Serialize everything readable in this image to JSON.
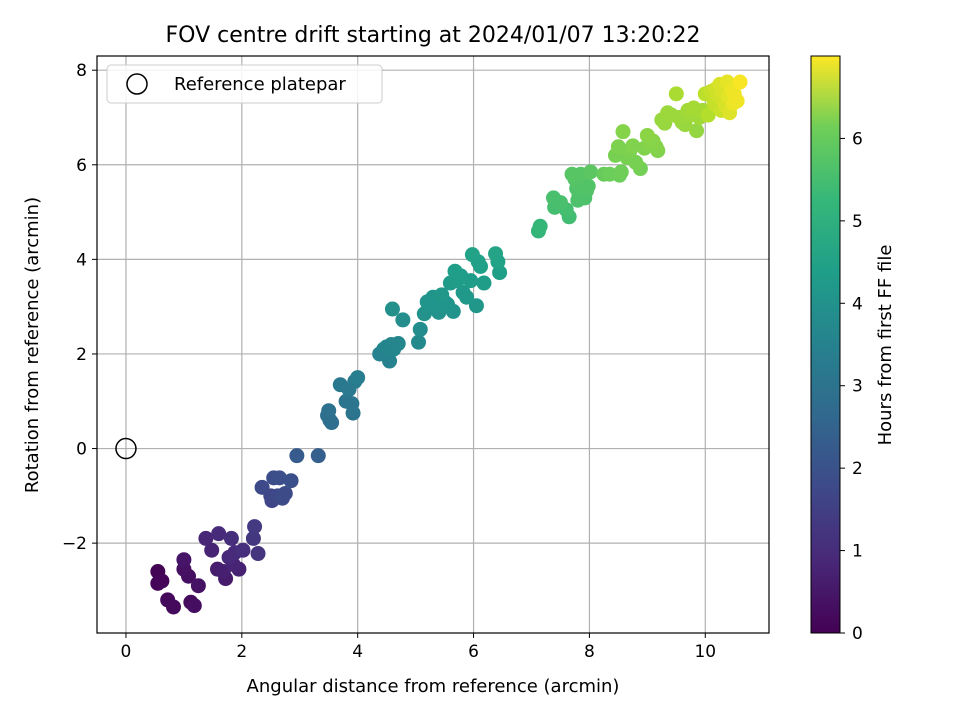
{
  "chart_data": {
    "type": "scatter",
    "title": "FOV centre drift starting at 2024/01/07 13:20:22",
    "xlabel": "Angular distance from reference (arcmin)",
    "ylabel": "Rotation from reference (arcmin)",
    "xlim": [
      -0.5,
      11.1
    ],
    "ylim": [
      -3.9,
      8.3
    ],
    "xticks": [
      0,
      2,
      4,
      6,
      8,
      10
    ],
    "xtick_labels": [
      "0",
      "2",
      "4",
      "6",
      "8",
      "10"
    ],
    "yticks": [
      -2,
      0,
      2,
      4,
      6,
      8
    ],
    "ytick_labels": [
      "−2",
      "0",
      "2",
      "4",
      "6",
      "8"
    ],
    "grid": true,
    "legend": {
      "placement": "top-left",
      "entries": [
        {
          "label": "Reference platepar",
          "marker": "open-circle"
        }
      ]
    },
    "reference_point": {
      "x": 0,
      "y": 0
    },
    "colorbar": {
      "label": "Hours from first FF file",
      "range": [
        0,
        7
      ],
      "ticks": [
        0,
        1,
        2,
        3,
        4,
        5,
        6
      ],
      "tick_labels": [
        "0",
        "1",
        "2",
        "3",
        "4",
        "5",
        "6"
      ],
      "colormap": "viridis"
    },
    "points": [
      {
        "x": 0.55,
        "y": -2.6,
        "h": 0.05
      },
      {
        "x": 0.55,
        "y": -2.85,
        "h": 0.08
      },
      {
        "x": 0.62,
        "y": -2.8,
        "h": 0.1
      },
      {
        "x": 0.72,
        "y": -3.2,
        "h": 0.15
      },
      {
        "x": 0.82,
        "y": -3.35,
        "h": 0.18
      },
      {
        "x": 1.0,
        "y": -2.35,
        "h": 0.4
      },
      {
        "x": 1.0,
        "y": -2.55,
        "h": 0.32
      },
      {
        "x": 1.08,
        "y": -2.7,
        "h": 0.28
      },
      {
        "x": 1.12,
        "y": -3.25,
        "h": 0.22
      },
      {
        "x": 1.18,
        "y": -3.32,
        "h": 0.25
      },
      {
        "x": 1.25,
        "y": -2.9,
        "h": 0.35
      },
      {
        "x": 1.38,
        "y": -1.9,
        "h": 0.75
      },
      {
        "x": 1.48,
        "y": -2.15,
        "h": 0.7
      },
      {
        "x": 1.58,
        "y": -2.55,
        "h": 0.55
      },
      {
        "x": 1.6,
        "y": -1.8,
        "h": 0.85
      },
      {
        "x": 1.68,
        "y": -2.6,
        "h": 0.6
      },
      {
        "x": 1.72,
        "y": -2.75,
        "h": 0.52
      },
      {
        "x": 1.78,
        "y": -2.3,
        "h": 0.78
      },
      {
        "x": 1.82,
        "y": -1.9,
        "h": 0.92
      },
      {
        "x": 1.85,
        "y": -2.45,
        "h": 0.7
      },
      {
        "x": 1.88,
        "y": -2.2,
        "h": 0.82
      },
      {
        "x": 1.95,
        "y": -2.55,
        "h": 0.65
      },
      {
        "x": 2.02,
        "y": -2.15,
        "h": 0.95
      },
      {
        "x": 2.2,
        "y": -1.9,
        "h": 1.15
      },
      {
        "x": 2.22,
        "y": -1.65,
        "h": 1.2
      },
      {
        "x": 2.28,
        "y": -2.22,
        "h": 1.05
      },
      {
        "x": 2.35,
        "y": -0.82,
        "h": 1.55
      },
      {
        "x": 2.5,
        "y": -1.0,
        "h": 1.5
      },
      {
        "x": 2.52,
        "y": -1.1,
        "h": 1.45
      },
      {
        "x": 2.55,
        "y": -0.62,
        "h": 1.65
      },
      {
        "x": 2.62,
        "y": -1.0,
        "h": 1.55
      },
      {
        "x": 2.65,
        "y": -0.62,
        "h": 1.7
      },
      {
        "x": 2.7,
        "y": -1.05,
        "h": 1.6
      },
      {
        "x": 2.75,
        "y": -0.95,
        "h": 1.62
      },
      {
        "x": 2.85,
        "y": -0.68,
        "h": 1.72
      },
      {
        "x": 2.95,
        "y": -0.15,
        "h": 2.0
      },
      {
        "x": 3.32,
        "y": -0.15,
        "h": 2.1
      },
      {
        "x": 3.48,
        "y": 0.7,
        "h": 2.55
      },
      {
        "x": 3.5,
        "y": 0.8,
        "h": 2.6
      },
      {
        "x": 3.52,
        "y": 0.6,
        "h": 2.5
      },
      {
        "x": 3.55,
        "y": 0.55,
        "h": 2.52
      },
      {
        "x": 3.7,
        "y": 1.35,
        "h": 2.8
      },
      {
        "x": 3.8,
        "y": 1.0,
        "h": 2.7
      },
      {
        "x": 3.85,
        "y": 1.25,
        "h": 2.85
      },
      {
        "x": 3.9,
        "y": 0.95,
        "h": 2.75
      },
      {
        "x": 3.92,
        "y": 0.75,
        "h": 2.68
      },
      {
        "x": 3.95,
        "y": 1.42,
        "h": 2.9
      },
      {
        "x": 4.0,
        "y": 1.5,
        "h": 2.95
      },
      {
        "x": 4.38,
        "y": 2.0,
        "h": 3.1
      },
      {
        "x": 4.45,
        "y": 2.1,
        "h": 3.15
      },
      {
        "x": 4.5,
        "y": 2.15,
        "h": 3.2
      },
      {
        "x": 4.52,
        "y": 1.95,
        "h": 3.12
      },
      {
        "x": 4.55,
        "y": 1.85,
        "h": 3.1
      },
      {
        "x": 4.58,
        "y": 2.2,
        "h": 3.22
      },
      {
        "x": 4.6,
        "y": 2.95,
        "h": 3.5
      },
      {
        "x": 4.62,
        "y": 2.1,
        "h": 3.2
      },
      {
        "x": 4.7,
        "y": 2.22,
        "h": 3.25
      },
      {
        "x": 4.78,
        "y": 2.72,
        "h": 3.45
      },
      {
        "x": 5.05,
        "y": 2.25,
        "h": 3.3
      },
      {
        "x": 5.08,
        "y": 2.52,
        "h": 3.4
      },
      {
        "x": 5.15,
        "y": 2.85,
        "h": 3.55
      },
      {
        "x": 5.2,
        "y": 3.1,
        "h": 3.62
      },
      {
        "x": 5.25,
        "y": 3.05,
        "h": 3.6
      },
      {
        "x": 5.3,
        "y": 3.2,
        "h": 3.65
      },
      {
        "x": 5.35,
        "y": 2.95,
        "h": 3.58
      },
      {
        "x": 5.38,
        "y": 3.05,
        "h": 3.62
      },
      {
        "x": 5.4,
        "y": 2.88,
        "h": 3.55
      },
      {
        "x": 5.45,
        "y": 3.25,
        "h": 3.7
      },
      {
        "x": 5.5,
        "y": 3.1,
        "h": 3.65
      },
      {
        "x": 5.55,
        "y": 3.05,
        "h": 3.63
      },
      {
        "x": 5.6,
        "y": 3.5,
        "h": 3.8
      },
      {
        "x": 5.65,
        "y": 2.9,
        "h": 3.6
      },
      {
        "x": 5.68,
        "y": 3.75,
        "h": 3.9
      },
      {
        "x": 5.72,
        "y": 3.55,
        "h": 3.82
      },
      {
        "x": 5.78,
        "y": 3.65,
        "h": 3.86
      },
      {
        "x": 5.82,
        "y": 3.3,
        "h": 3.75
      },
      {
        "x": 5.88,
        "y": 3.2,
        "h": 3.72
      },
      {
        "x": 5.95,
        "y": 3.55,
        "h": 3.85
      },
      {
        "x": 5.98,
        "y": 4.1,
        "h": 4.0
      },
      {
        "x": 6.05,
        "y": 3.02,
        "h": 3.7
      },
      {
        "x": 6.08,
        "y": 3.95,
        "h": 3.97
      },
      {
        "x": 6.12,
        "y": 3.85,
        "h": 3.95
      },
      {
        "x": 6.18,
        "y": 3.5,
        "h": 3.85
      },
      {
        "x": 6.38,
        "y": 4.12,
        "h": 4.05
      },
      {
        "x": 6.42,
        "y": 3.95,
        "h": 4.0
      },
      {
        "x": 6.45,
        "y": 3.72,
        "h": 3.92
      },
      {
        "x": 7.12,
        "y": 4.6,
        "h": 4.6
      },
      {
        "x": 7.15,
        "y": 4.7,
        "h": 4.65
      },
      {
        "x": 7.38,
        "y": 5.3,
        "h": 4.95
      },
      {
        "x": 7.4,
        "y": 5.1,
        "h": 4.9
      },
      {
        "x": 7.5,
        "y": 5.2,
        "h": 4.95
      },
      {
        "x": 7.6,
        "y": 5.05,
        "h": 4.9
      },
      {
        "x": 7.65,
        "y": 4.9,
        "h": 4.85
      },
      {
        "x": 7.7,
        "y": 5.8,
        "h": 5.15
      },
      {
        "x": 7.75,
        "y": 5.7,
        "h": 5.1
      },
      {
        "x": 7.78,
        "y": 5.5,
        "h": 5.05
      },
      {
        "x": 7.8,
        "y": 5.25,
        "h": 5.0
      },
      {
        "x": 7.82,
        "y": 5.35,
        "h": 5.02
      },
      {
        "x": 7.85,
        "y": 5.8,
        "h": 5.15
      },
      {
        "x": 7.88,
        "y": 5.55,
        "h": 5.08
      },
      {
        "x": 7.92,
        "y": 5.3,
        "h": 5.0
      },
      {
        "x": 7.95,
        "y": 5.45,
        "h": 5.05
      },
      {
        "x": 7.98,
        "y": 5.55,
        "h": 5.08
      },
      {
        "x": 8.02,
        "y": 5.85,
        "h": 5.2
      },
      {
        "x": 8.25,
        "y": 5.8,
        "h": 5.35
      },
      {
        "x": 8.35,
        "y": 5.8,
        "h": 5.4
      },
      {
        "x": 8.45,
        "y": 6.2,
        "h": 5.55
      },
      {
        "x": 8.5,
        "y": 6.38,
        "h": 5.6
      },
      {
        "x": 8.52,
        "y": 5.78,
        "h": 5.4
      },
      {
        "x": 8.55,
        "y": 5.85,
        "h": 5.45
      },
      {
        "x": 8.58,
        "y": 6.7,
        "h": 5.7
      },
      {
        "x": 8.65,
        "y": 6.15,
        "h": 5.55
      },
      {
        "x": 8.7,
        "y": 6.3,
        "h": 5.6
      },
      {
        "x": 8.75,
        "y": 6.4,
        "h": 5.65
      },
      {
        "x": 8.8,
        "y": 6.05,
        "h": 5.55
      },
      {
        "x": 8.88,
        "y": 5.92,
        "h": 5.5
      },
      {
        "x": 8.95,
        "y": 6.35,
        "h": 5.65
      },
      {
        "x": 9.0,
        "y": 6.62,
        "h": 5.75
      },
      {
        "x": 9.05,
        "y": 6.45,
        "h": 5.7
      },
      {
        "x": 9.1,
        "y": 6.5,
        "h": 5.72
      },
      {
        "x": 9.15,
        "y": 6.38,
        "h": 5.68
      },
      {
        "x": 9.18,
        "y": 6.3,
        "h": 5.65
      },
      {
        "x": 9.25,
        "y": 6.95,
        "h": 5.9
      },
      {
        "x": 9.3,
        "y": 6.88,
        "h": 5.88
      },
      {
        "x": 9.35,
        "y": 7.1,
        "h": 5.95
      },
      {
        "x": 9.42,
        "y": 7.05,
        "h": 5.93
      },
      {
        "x": 9.5,
        "y": 7.5,
        "h": 6.1
      },
      {
        "x": 9.55,
        "y": 7.0,
        "h": 5.95
      },
      {
        "x": 9.6,
        "y": 6.9,
        "h": 5.9
      },
      {
        "x": 9.65,
        "y": 6.85,
        "h": 5.9
      },
      {
        "x": 9.7,
        "y": 7.15,
        "h": 6.0
      },
      {
        "x": 9.75,
        "y": 7.05,
        "h": 5.98
      },
      {
        "x": 9.8,
        "y": 7.2,
        "h": 6.05
      },
      {
        "x": 9.85,
        "y": 6.72,
        "h": 5.85
      },
      {
        "x": 9.9,
        "y": 7.0,
        "h": 5.98
      },
      {
        "x": 9.95,
        "y": 7.15,
        "h": 6.05
      },
      {
        "x": 10.0,
        "y": 7.5,
        "h": 6.3
      },
      {
        "x": 10.05,
        "y": 7.05,
        "h": 6.2
      },
      {
        "x": 10.1,
        "y": 7.55,
        "h": 6.4
      },
      {
        "x": 10.15,
        "y": 7.3,
        "h": 6.35
      },
      {
        "x": 10.18,
        "y": 7.6,
        "h": 6.5
      },
      {
        "x": 10.2,
        "y": 7.25,
        "h": 6.4
      },
      {
        "x": 10.22,
        "y": 7.45,
        "h": 6.5
      },
      {
        "x": 10.25,
        "y": 7.7,
        "h": 6.6
      },
      {
        "x": 10.28,
        "y": 7.15,
        "h": 6.45
      },
      {
        "x": 10.3,
        "y": 7.55,
        "h": 6.6
      },
      {
        "x": 10.32,
        "y": 7.35,
        "h": 6.55
      },
      {
        "x": 10.35,
        "y": 7.25,
        "h": 6.6
      },
      {
        "x": 10.38,
        "y": 7.75,
        "h": 6.75
      },
      {
        "x": 10.4,
        "y": 7.45,
        "h": 6.7
      },
      {
        "x": 10.42,
        "y": 7.1,
        "h": 6.65
      },
      {
        "x": 10.45,
        "y": 7.6,
        "h": 6.8
      },
      {
        "x": 10.48,
        "y": 7.3,
        "h": 6.8
      },
      {
        "x": 10.5,
        "y": 7.5,
        "h": 6.85
      },
      {
        "x": 10.55,
        "y": 7.35,
        "h": 6.85
      },
      {
        "x": 10.6,
        "y": 7.75,
        "h": 6.95
      }
    ]
  }
}
